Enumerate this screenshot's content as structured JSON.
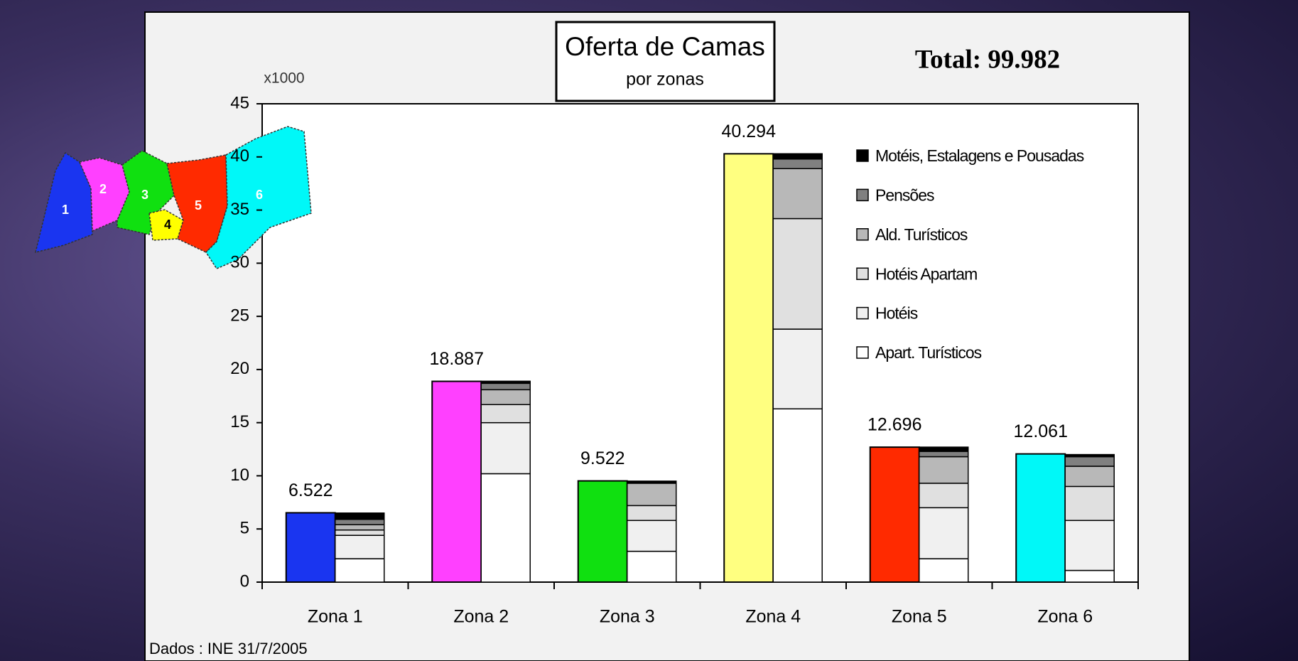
{
  "chart_data": {
    "type": "bar",
    "title": "Oferta de Camas",
    "subtitle": "por zonas",
    "total_label": "Total: 99.982",
    "unit_label": "x1000",
    "source": "Dados : INE 31/7/2005",
    "categories": [
      "Zona 1",
      "Zona 2",
      "Zona 3",
      "Zona 4",
      "Zona 5",
      "Zona 6"
    ],
    "totals": {
      "values": [
        6.522,
        18.887,
        9.522,
        40.294,
        12.696,
        12.061
      ],
      "colors": [
        "#1a35f0",
        "#ff40ff",
        "#10e010",
        "#ffff80",
        "#ff2a00",
        "#00f8f8"
      ]
    },
    "series": [
      {
        "name": "Apart. Turísticos",
        "color": "#ffffff",
        "values": [
          2.2,
          10.2,
          2.9,
          16.3,
          2.2,
          1.1
        ]
      },
      {
        "name": "Hotéis",
        "color": "#f0f0f0",
        "values": [
          2.2,
          4.8,
          2.9,
          7.5,
          4.8,
          4.7
        ]
      },
      {
        "name": "Hotéis Apartam",
        "color": "#e0e0e0",
        "values": [
          0.5,
          1.7,
          1.4,
          10.4,
          2.3,
          3.2
        ]
      },
      {
        "name": "Ald. Turísticos",
        "color": "#b8b8b8",
        "values": [
          0.5,
          1.4,
          2.1,
          4.7,
          2.5,
          1.9
        ]
      },
      {
        "name": "Pensões",
        "color": "#808080",
        "values": [
          0.5,
          0.6,
          0.1,
          0.9,
          0.5,
          0.9
        ]
      },
      {
        "name": "Motéis, Estalagens e Pousadas",
        "color": "#000000",
        "values": [
          0.6,
          0.2,
          0.1,
          0.5,
          0.4,
          0.2
        ]
      }
    ],
    "ylim": [
      0,
      45
    ],
    "yticks": [
      0,
      5,
      10,
      15,
      20,
      25,
      30,
      35,
      40,
      45
    ]
  },
  "map": {
    "labels": [
      "1",
      "2",
      "3",
      "4",
      "5",
      "6"
    ]
  }
}
